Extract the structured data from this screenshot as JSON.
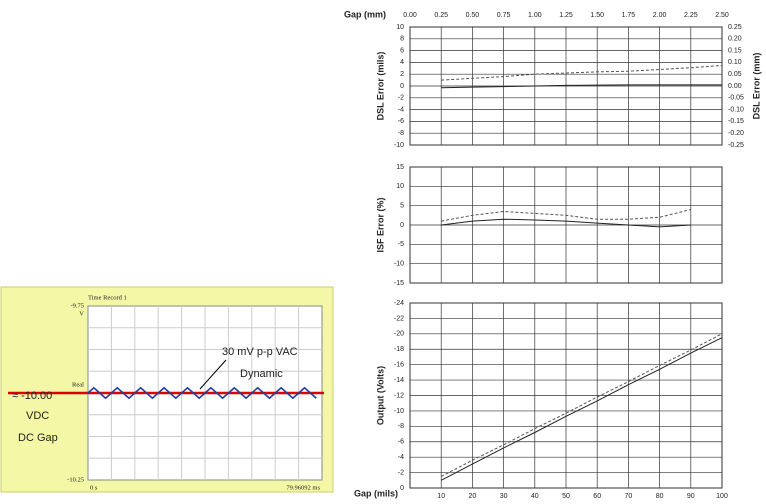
{
  "chart_data": [
    {
      "type": "line",
      "title": "Time Record 1",
      "ylabel": "V",
      "x": [
        0,
        2,
        4,
        6,
        8,
        10,
        12,
        14,
        16,
        18,
        20,
        22,
        24,
        26,
        28,
        30,
        32,
        34,
        36,
        38,
        40,
        42,
        44,
        46,
        48,
        50,
        52,
        54,
        56,
        58,
        60,
        62,
        64,
        66,
        68,
        70,
        72,
        74,
        76,
        78
      ],
      "series": [
        {
          "name": "Real",
          "color": "#1f3f9f",
          "style": "solid",
          "values": [
            -10,
            -9.985,
            -10,
            -10.015,
            -10,
            -9.985,
            -10,
            -10.015,
            -10,
            -9.985,
            -10,
            -10.015,
            -10,
            -9.985,
            -10,
            -10.015,
            -10,
            -9.985,
            -10,
            -10.015,
            -10,
            -9.985,
            -10,
            -10.015,
            -10,
            -9.985,
            -10,
            -10.015,
            -10,
            -9.985,
            -10,
            -10.015,
            -10,
            -9.985,
            -10,
            -10.015,
            -10,
            -9.985,
            -10,
            -10.015
          ]
        }
      ],
      "xlim": [
        0,
        79.96092
      ],
      "xticks": [
        {
          "value": 0,
          "label": "0 s"
        },
        {
          "value": 79.96092,
          "label": "79.96092 ms"
        }
      ],
      "ylim": [
        -10.25,
        -9.75
      ],
      "yticks": [
        -9.75,
        -10.25
      ],
      "reference_line": -10,
      "reference_color": "#e00000",
      "annotations": [
        "30 mV p-p VAC",
        "Dynamic",
        "≈ -10.00",
        "VDC",
        "DC Gap"
      ],
      "grid": true
    },
    {
      "type": "line",
      "ylabel": "DSL Error (mils)",
      "y2label": "DSL Error (mm)",
      "x2label": "Gap (mm)",
      "x": [
        10,
        20,
        30,
        40,
        50,
        60,
        70,
        80,
        90,
        100
      ],
      "series": [
        {
          "color": "#222222",
          "style": "solid",
          "values": [
            -0.3,
            -0.2,
            -0.1,
            0,
            0.1,
            0.15,
            0.2,
            0.2,
            0.2,
            0.2
          ]
        },
        {
          "color": "#555555",
          "style": "dashed",
          "values": [
            1,
            1.3,
            1.6,
            2,
            2.2,
            2.4,
            2.5,
            2.8,
            3.1,
            3.5
          ]
        }
      ],
      "xlim": [
        0,
        100
      ],
      "xgrid": [
        10,
        20,
        30,
        40,
        50,
        60,
        70,
        80,
        90,
        100
      ],
      "x2lim": [
        0,
        2.5
      ],
      "x2ticks": [
        {
          "value": 0,
          "label": "0.00"
        },
        {
          "value": 0.25,
          "label": "0.25"
        },
        {
          "value": 0.5,
          "label": "0.50"
        },
        {
          "value": 0.75,
          "label": "0.75"
        },
        {
          "value": 1,
          "label": "1.00"
        },
        {
          "value": 1.25,
          "label": "1.25"
        },
        {
          "value": 1.5,
          "label": "1.50"
        },
        {
          "value": 1.75,
          "label": "1.75"
        },
        {
          "value": 2,
          "label": "2.00"
        },
        {
          "value": 2.25,
          "label": "2.25"
        },
        {
          "value": 2.5,
          "label": "2.50"
        }
      ],
      "ylim": [
        -10,
        10
      ],
      "yticks": [
        10,
        8,
        6,
        4,
        2,
        0,
        -2,
        -4,
        -6,
        -8,
        -10
      ],
      "y2lim": [
        -0.25,
        0.25
      ],
      "y2ticks": [
        {
          "value": 0.25,
          "label": "0.25"
        },
        {
          "value": 0.2,
          "label": "0.20"
        },
        {
          "value": 0.15,
          "label": "0.15"
        },
        {
          "value": 0.1,
          "label": "0.10"
        },
        {
          "value": 0.05,
          "label": "0.05"
        },
        {
          "value": 0,
          "label": "0.00"
        },
        {
          "value": -0.05,
          "label": "-0.05"
        },
        {
          "value": -0.1,
          "label": "-0.10"
        },
        {
          "value": -0.15,
          "label": "-0.15"
        },
        {
          "value": -0.2,
          "label": "-0.20"
        },
        {
          "value": -0.25,
          "label": "-0.25"
        }
      ],
      "grid": true
    },
    {
      "type": "line",
      "ylabel": "ISF Error (%)",
      "x": [
        10,
        20,
        30,
        40,
        50,
        60,
        70,
        80,
        90
      ],
      "series": [
        {
          "color": "#222222",
          "style": "solid",
          "values": [
            0,
            1,
            1.5,
            1.3,
            1,
            0.5,
            0,
            -0.5,
            0
          ]
        },
        {
          "color": "#555555",
          "style": "dashed",
          "values": [
            1,
            2.5,
            3.5,
            3,
            2.5,
            1.5,
            1.5,
            2,
            4
          ]
        }
      ],
      "xlim": [
        0,
        100
      ],
      "xgrid": [
        10,
        20,
        30,
        40,
        50,
        60,
        70,
        80,
        90,
        100
      ],
      "ylim": [
        -15,
        15
      ],
      "yticks": [
        15,
        10,
        5,
        0,
        -5,
        -10,
        -15
      ],
      "grid": true
    },
    {
      "type": "line",
      "ylabel": "Output (Volts)",
      "xlabel": "Gap (mils)",
      "x": [
        10,
        20,
        30,
        40,
        50,
        60,
        70,
        80,
        90,
        100
      ],
      "series": [
        {
          "color": "#222222",
          "style": "solid",
          "values": [
            -1,
            -3.1,
            -5.2,
            -7.2,
            -9.3,
            -11.3,
            -13.4,
            -15.4,
            -17.5,
            -19.5
          ]
        },
        {
          "color": "#555555",
          "style": "dashed",
          "values": [
            -1.5,
            -3.6,
            -5.6,
            -7.7,
            -9.7,
            -11.8,
            -13.8,
            -15.9,
            -17.9,
            -20
          ]
        }
      ],
      "xlim": [
        0,
        100
      ],
      "xticks": [
        10,
        20,
        30,
        40,
        50,
        60,
        70,
        80,
        90,
        100
      ],
      "ylim": [
        0,
        -24
      ],
      "yticks": [
        -24,
        -22,
        -20,
        -18,
        -16,
        -14,
        -12,
        -10,
        -8,
        -6,
        -4,
        -2,
        0
      ],
      "grid": true
    }
  ]
}
